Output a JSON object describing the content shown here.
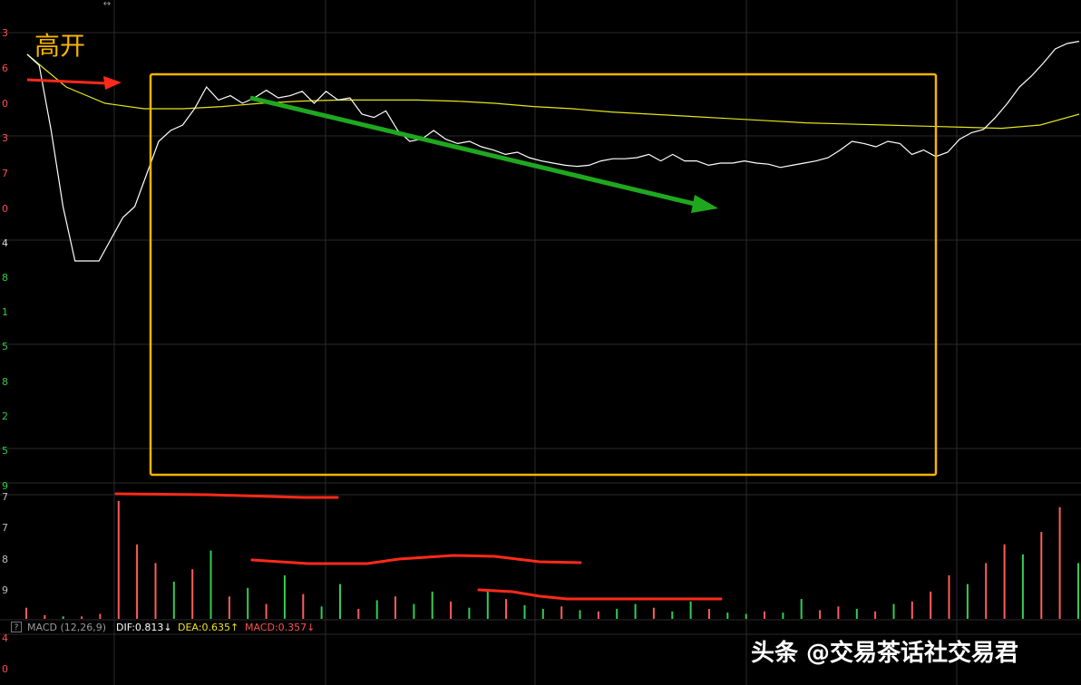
{
  "annotations": {
    "gap_up_label": "高开"
  },
  "price_axis_ticks": [
    "3",
    "6",
    "0",
    "3",
    "7",
    "0",
    "4",
    "8",
    "1",
    "5",
    "8",
    "2",
    "5",
    "9"
  ],
  "volume_axis_ticks": [
    "7",
    "7",
    "8",
    "9",
    "4",
    "0"
  ],
  "resize_glyph": "↔",
  "indicator": {
    "help": "?",
    "name": "MACD (12,26,9)",
    "dif": "DIF:0.813↓",
    "dea": "DEA:0.635↑",
    "macd": "MACD:0.357↓"
  },
  "watermark": "头条 @交易茶话社交易君",
  "colors": {
    "background": "#000000",
    "grid": "#2a2a2a",
    "price_line": "#ffffff",
    "avg_line": "#e6e61c",
    "highlight_box": "#f5b400",
    "label": "#f5b400",
    "up_tick": "#ff4d4d",
    "down_tick": "#2ecc40",
    "red_arrow": "#ff2a1a",
    "green_arrow": "#1fa81f",
    "vol_up": "#ff5c5c",
    "vol_down": "#33cc55",
    "dif_text": "#ffffff",
    "dea_text": "#f0e020",
    "macd_text": "#ff5050"
  },
  "chart_data": {
    "type": "line",
    "series": [
      {
        "values": [
          6.0,
          5.9,
          5.3,
          4.6,
          4.1,
          4.1,
          4.1,
          4.3,
          4.5,
          4.6,
          4.9,
          5.2,
          5.3,
          5.35,
          5.5,
          5.7,
          5.58,
          5.62,
          5.55,
          5.6,
          5.67,
          5.6,
          5.62,
          5.66,
          5.55,
          5.66,
          5.58,
          5.6,
          5.45,
          5.42,
          5.48,
          5.3,
          5.2,
          5.22,
          5.3,
          5.22,
          5.18,
          5.2,
          5.15,
          5.12,
          5.08,
          5.1,
          5.05,
          5.02,
          5.0,
          4.98,
          4.97,
          4.98,
          5.02,
          5.04,
          5.04,
          5.05,
          5.08,
          5.02,
          5.08,
          5.02,
          5.02,
          4.98,
          5.0,
          5.0,
          5.02,
          5.0,
          4.99,
          4.96,
          4.98,
          5.0,
          5.02,
          5.05,
          5.12,
          5.2,
          5.18,
          5.15,
          5.2,
          5.18,
          5.08,
          5.12,
          5.06,
          5.1,
          5.22,
          5.28,
          5.31,
          5.42,
          5.55,
          5.7,
          5.8,
          5.92,
          6.05,
          6.1,
          6.12
        ]
      },
      {
        "values": [
          6.0,
          5.7,
          5.55,
          5.5,
          5.5,
          5.52,
          5.55,
          5.57,
          5.58,
          5.58,
          5.58,
          5.57,
          5.55,
          5.52,
          5.5,
          5.47,
          5.45,
          5.43,
          5.41,
          5.39,
          5.37,
          5.36,
          5.35,
          5.34,
          5.33,
          5.32,
          5.35,
          5.45
        ]
      }
    ],
    "volume": [
      {
        "v": 9,
        "up": true
      },
      {
        "v": 3,
        "up": true
      },
      {
        "v": 2,
        "up": false
      },
      {
        "v": 2,
        "up": true
      },
      {
        "v": 4,
        "up": true
      },
      {
        "v": 95,
        "up": true
      },
      {
        "v": 60,
        "up": true
      },
      {
        "v": 45,
        "up": true
      },
      {
        "v": 30,
        "up": false
      },
      {
        "v": 40,
        "up": true
      },
      {
        "v": 55,
        "up": false
      },
      {
        "v": 18,
        "up": true
      },
      {
        "v": 25,
        "up": false
      },
      {
        "v": 12,
        "up": true
      },
      {
        "v": 35,
        "up": false
      },
      {
        "v": 20,
        "up": true
      },
      {
        "v": 10,
        "up": false
      },
      {
        "v": 28,
        "up": false
      },
      {
        "v": 8,
        "up": true
      },
      {
        "v": 15,
        "up": false
      },
      {
        "v": 18,
        "up": true
      },
      {
        "v": 12,
        "up": false
      },
      {
        "v": 22,
        "up": false
      },
      {
        "v": 14,
        "up": true
      },
      {
        "v": 9,
        "up": false
      },
      {
        "v": 24,
        "up": false
      },
      {
        "v": 16,
        "up": true
      },
      {
        "v": 11,
        "up": false
      },
      {
        "v": 8,
        "up": false
      },
      {
        "v": 10,
        "up": true
      },
      {
        "v": 7,
        "up": false
      },
      {
        "v": 6,
        "up": true
      },
      {
        "v": 8,
        "up": false
      },
      {
        "v": 12,
        "up": false
      },
      {
        "v": 9,
        "up": true
      },
      {
        "v": 6,
        "up": false
      },
      {
        "v": 14,
        "up": false
      },
      {
        "v": 8,
        "up": true
      },
      {
        "v": 5,
        "up": false
      },
      {
        "v": 4,
        "up": false
      },
      {
        "v": 6,
        "up": true
      },
      {
        "v": 5,
        "up": false
      },
      {
        "v": 16,
        "up": false
      },
      {
        "v": 7,
        "up": true
      },
      {
        "v": 10,
        "up": true
      },
      {
        "v": 8,
        "up": false
      },
      {
        "v": 6,
        "up": true
      },
      {
        "v": 12,
        "up": false
      },
      {
        "v": 14,
        "up": true
      },
      {
        "v": 22,
        "up": true
      },
      {
        "v": 35,
        "up": true
      },
      {
        "v": 28,
        "up": false
      },
      {
        "v": 45,
        "up": true
      },
      {
        "v": 60,
        "up": true
      },
      {
        "v": 52,
        "up": false
      },
      {
        "v": 70,
        "up": true
      },
      {
        "v": 90,
        "up": true
      },
      {
        "v": 45,
        "up": false
      }
    ]
  }
}
